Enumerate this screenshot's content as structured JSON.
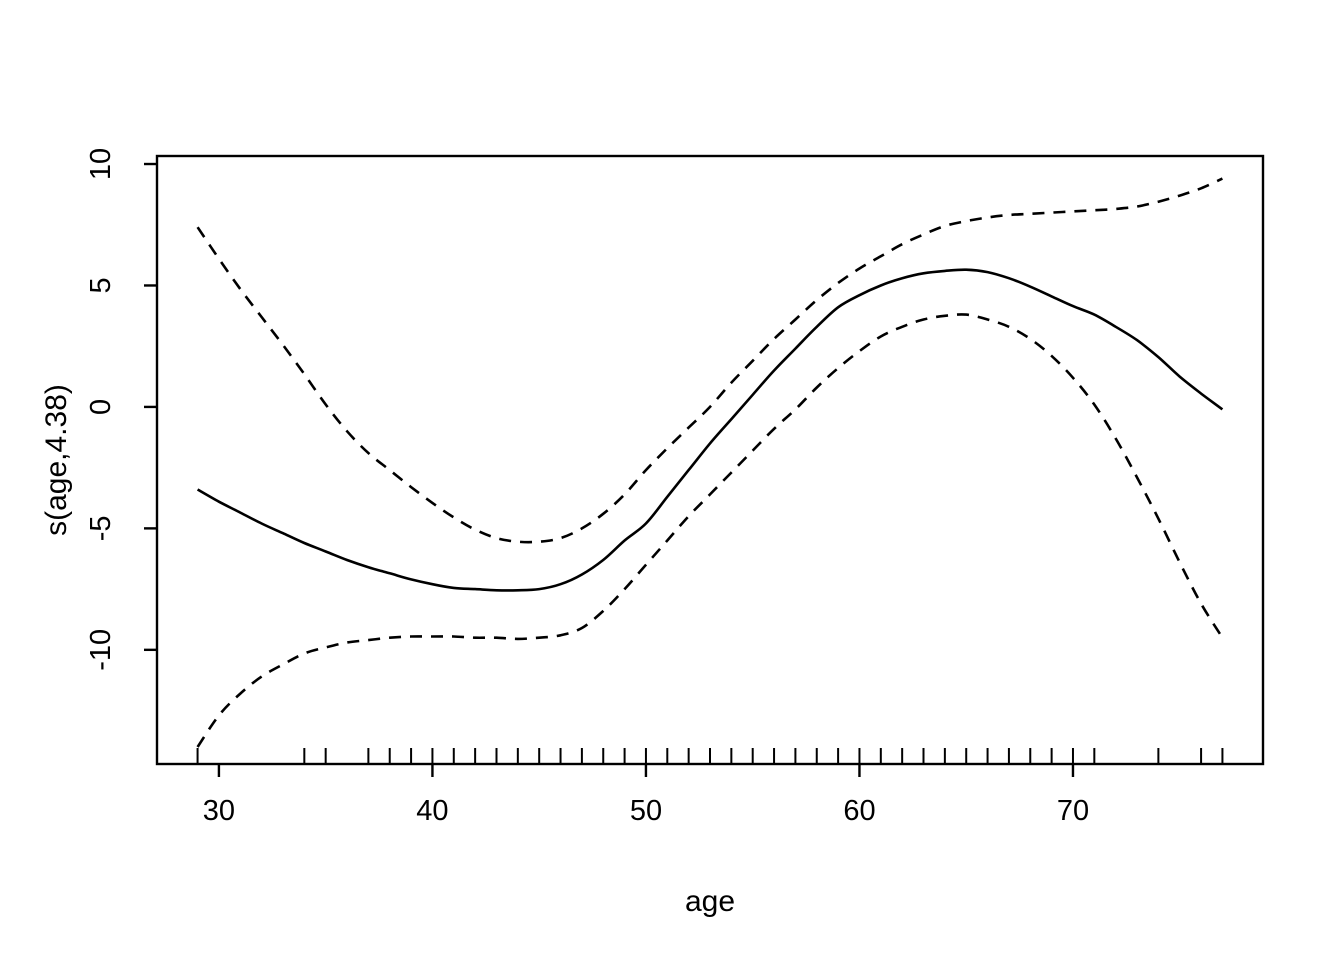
{
  "figure": {
    "background": "#ffffff",
    "line_color": "#000000"
  },
  "chart_data": {
    "type": "line",
    "title": "",
    "xlabel": "age",
    "ylabel": "s(age,4.38)",
    "x_ticks": [
      30,
      40,
      50,
      60,
      70
    ],
    "y_ticks": [
      -10,
      -5,
      0,
      5,
      10
    ],
    "xlim": [
      27.1,
      78.9
    ],
    "ylim": [
      -14.7,
      10.33
    ],
    "grid": false,
    "legend": "none",
    "x": [
      29,
      30,
      31,
      32,
      33,
      34,
      35,
      36,
      37,
      38,
      39,
      40,
      41,
      42,
      43,
      44,
      45,
      46,
      47,
      48,
      49,
      50,
      51,
      52,
      53,
      54,
      55,
      56,
      57,
      58,
      59,
      60,
      61,
      62,
      63,
      64,
      65,
      66,
      67,
      68,
      69,
      70,
      71,
      72,
      73,
      74,
      75,
      76,
      77
    ],
    "series": [
      {
        "name": "fit",
        "style": "solid",
        "values": [
          -3.4,
          -3.9,
          -4.35,
          -4.8,
          -5.2,
          -5.6,
          -5.95,
          -6.3,
          -6.6,
          -6.85,
          -7.1,
          -7.3,
          -7.45,
          -7.5,
          -7.55,
          -7.55,
          -7.5,
          -7.3,
          -6.9,
          -6.3,
          -5.5,
          -4.8,
          -3.7,
          -2.6,
          -1.5,
          -0.5,
          0.5,
          1.5,
          2.4,
          3.3,
          4.1,
          4.6,
          5.0,
          5.3,
          5.5,
          5.6,
          5.65,
          5.55,
          5.3,
          4.95,
          4.55,
          4.15,
          3.8,
          3.3,
          2.75,
          2.05,
          1.25,
          0.55,
          -0.1
        ]
      },
      {
        "name": "upper_se",
        "style": "dashed",
        "values": [
          7.4,
          6.1,
          4.85,
          3.7,
          2.55,
          1.35,
          0.1,
          -1.0,
          -1.9,
          -2.6,
          -3.3,
          -3.95,
          -4.55,
          -5.05,
          -5.4,
          -5.55,
          -5.55,
          -5.4,
          -5.0,
          -4.4,
          -3.6,
          -2.6,
          -1.7,
          -0.85,
          0.0,
          1.0,
          1.9,
          2.8,
          3.6,
          4.4,
          5.1,
          5.7,
          6.2,
          6.7,
          7.1,
          7.45,
          7.65,
          7.8,
          7.9,
          7.95,
          8.0,
          8.05,
          8.1,
          8.15,
          8.25,
          8.45,
          8.7,
          9.0,
          9.4
        ]
      },
      {
        "name": "lower_se",
        "style": "dashed",
        "values": [
          -14.0,
          -12.7,
          -11.8,
          -11.1,
          -10.6,
          -10.15,
          -9.9,
          -9.7,
          -9.6,
          -9.5,
          -9.45,
          -9.45,
          -9.45,
          -9.5,
          -9.5,
          -9.55,
          -9.5,
          -9.4,
          -9.1,
          -8.4,
          -7.5,
          -6.5,
          -5.5,
          -4.5,
          -3.6,
          -2.7,
          -1.8,
          -0.9,
          -0.1,
          0.8,
          1.6,
          2.3,
          2.9,
          3.3,
          3.6,
          3.75,
          3.8,
          3.6,
          3.3,
          2.8,
          2.1,
          1.2,
          0.1,
          -1.3,
          -2.9,
          -4.6,
          -6.4,
          -8.1,
          -9.5
        ]
      }
    ],
    "rug_ages": [
      29,
      34,
      35,
      37,
      38,
      39,
      40,
      41,
      42,
      43,
      44,
      45,
      46,
      47,
      48,
      49,
      50,
      51,
      52,
      53,
      54,
      55,
      56,
      57,
      58,
      59,
      60,
      61,
      62,
      63,
      64,
      65,
      66,
      67,
      68,
      69,
      70,
      71,
      74,
      76,
      77
    ]
  }
}
